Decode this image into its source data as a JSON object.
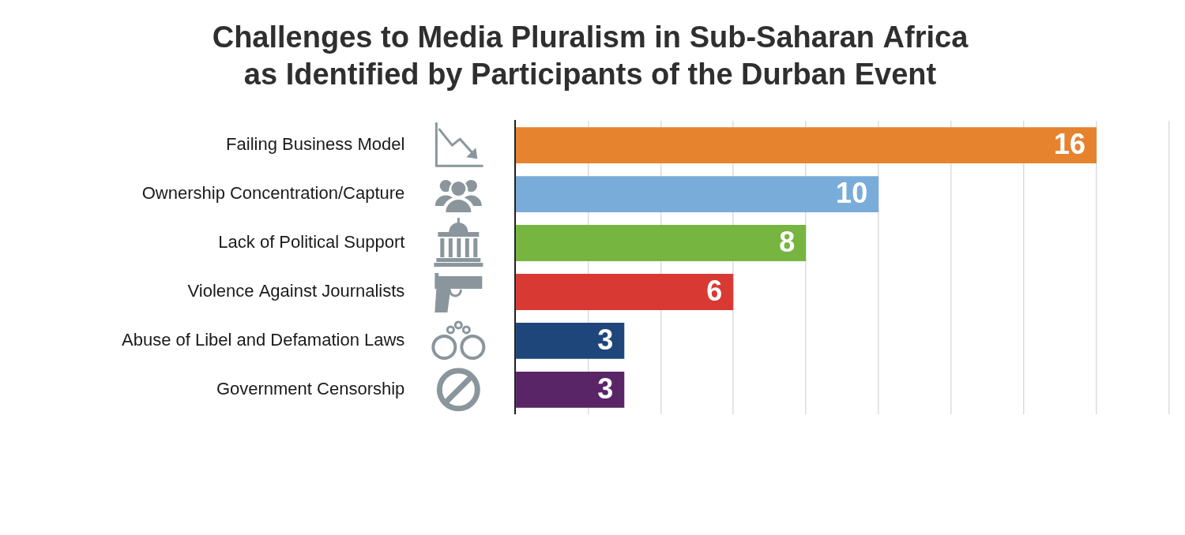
{
  "chart_data": {
    "type": "bar",
    "orientation": "horizontal",
    "title": "Challenges to Media Pluralism in Sub-Saharan Africa as Identified by Participants of the Durban Event",
    "categories": [
      "Failing Business Model",
      "Ownership Concentration/Capture",
      "Lack of Political Support",
      "Violence Against Journalists",
      "Abuse of Libel and Defamation Laws",
      "Government Censorship"
    ],
    "values": [
      16,
      10,
      8,
      6,
      3,
      3
    ],
    "colors": [
      "#e5832f",
      "#79acd9",
      "#76b540",
      "#d83a33",
      "#1f467a",
      "#5a2566"
    ],
    "xlim": [
      0,
      18
    ],
    "xticks": [
      0,
      2,
      4,
      6,
      8,
      10,
      12,
      14,
      16,
      18
    ],
    "grid": true,
    "data_labels": true,
    "tick_labels": "y"
  }
}
